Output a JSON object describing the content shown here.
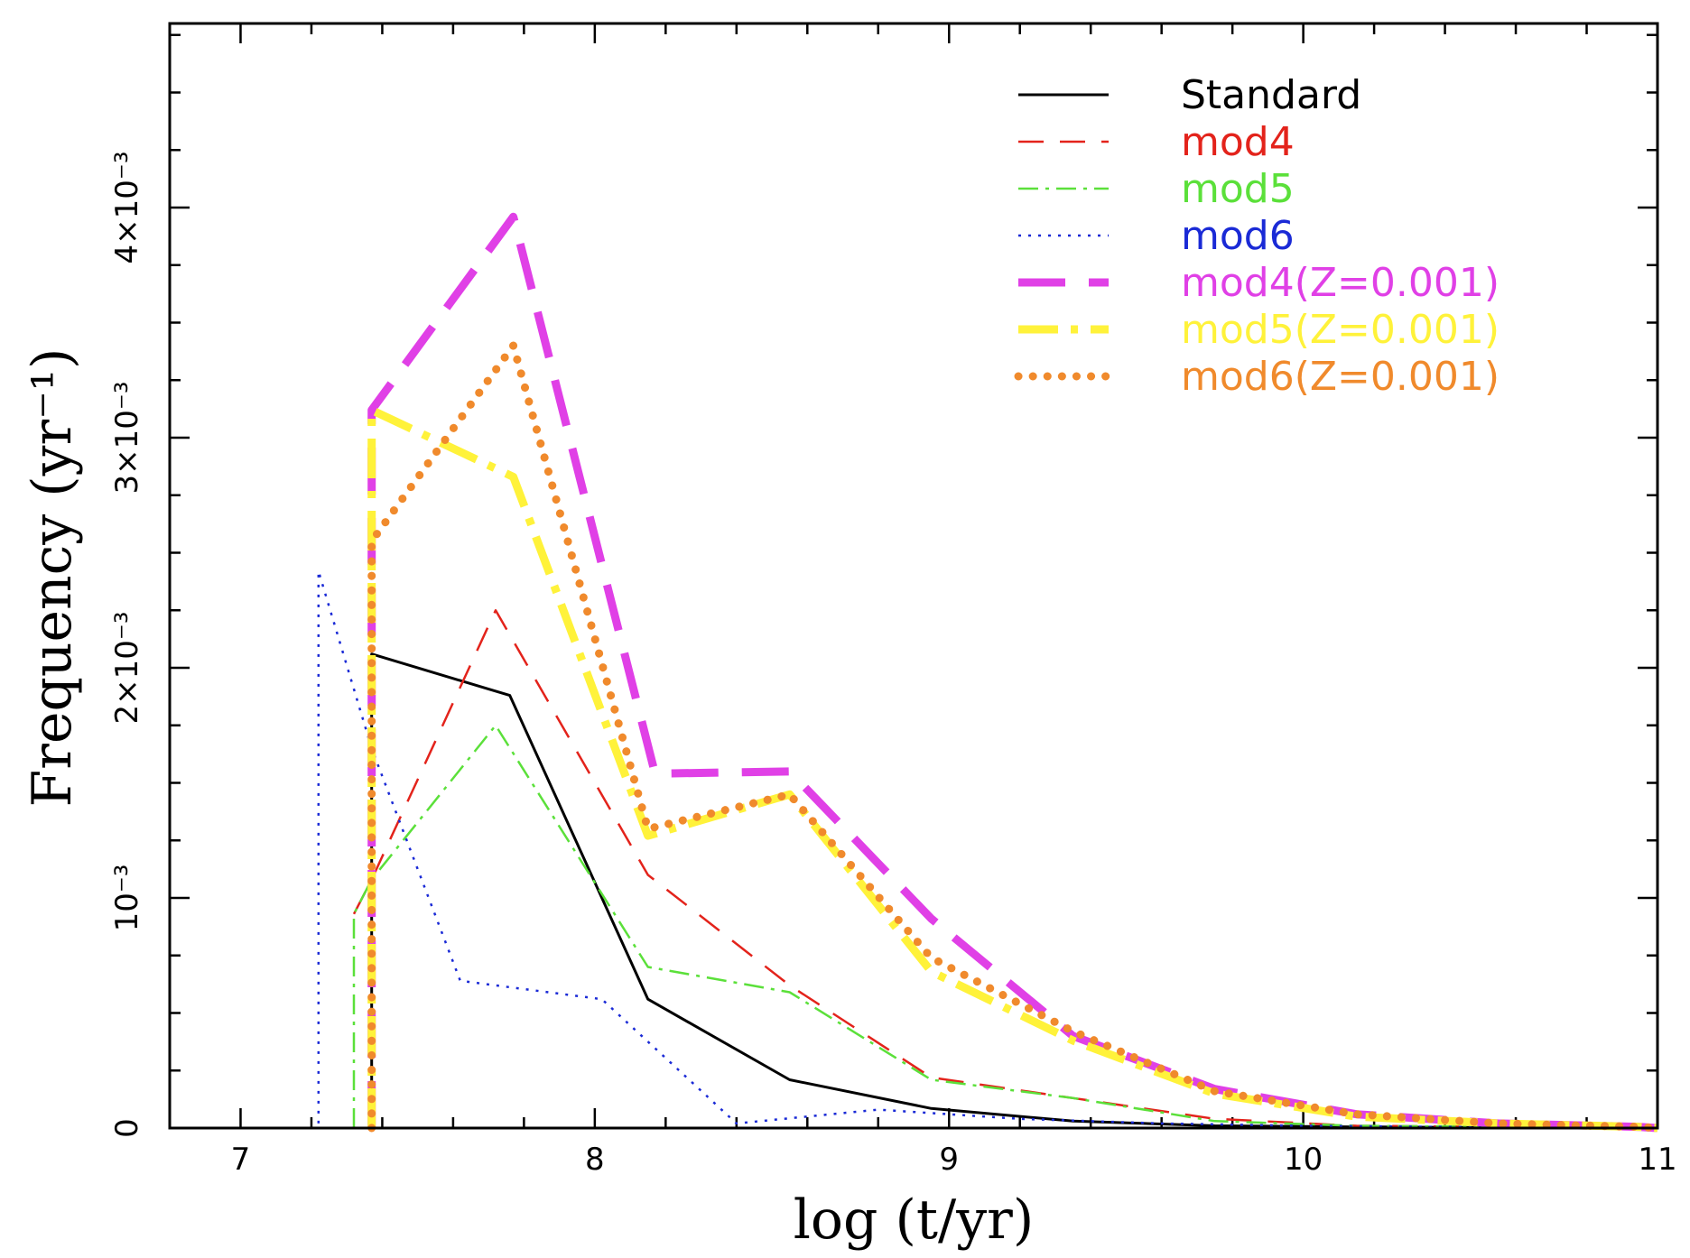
{
  "chart_data": {
    "type": "line",
    "xlabel": "log (t/yr)",
    "ylabel": "Frequency (yr⁻¹)",
    "xlim": [
      6.8,
      11
    ],
    "ylim": [
      0,
      0.0048
    ],
    "x_ticks": [
      {
        "value": 7,
        "label": "7"
      },
      {
        "value": 8,
        "label": "8"
      },
      {
        "value": 9,
        "label": "9"
      },
      {
        "value": 10,
        "label": "10"
      },
      {
        "value": 11,
        "label": "11"
      }
    ],
    "y_ticks": [
      {
        "value": 0,
        "label": "0"
      },
      {
        "value": 0.001,
        "label": "10⁻³"
      },
      {
        "value": 0.002,
        "label": "2×10⁻³"
      },
      {
        "value": 0.003,
        "label": "3×10⁻³"
      },
      {
        "value": 0.004,
        "label": "4×10⁻³"
      }
    ],
    "legend_position": "top-right",
    "series": [
      {
        "name": "Standard",
        "color": "#000000",
        "style": "solid",
        "width": 3,
        "x": [
          7.37,
          7.37,
          7.76,
          8.15,
          8.55,
          8.95,
          9.35,
          9.75,
          10.15,
          10.55,
          10.95,
          11.0
        ],
        "y": [
          0,
          0.00206,
          0.00188,
          0.00056,
          0.00021,
          8.5e-05,
          3e-05,
          1e-05,
          5e-06,
          2e-06,
          5e-07,
          0
        ]
      },
      {
        "name": "mod4",
        "color": "#e3231b",
        "style": "dash",
        "width": 2.5,
        "x": [
          7.32,
          7.37,
          7.72,
          8.15,
          8.55,
          8.95,
          9.35,
          9.75,
          10.15,
          10.55,
          10.95,
          11.0
        ],
        "y": [
          0.00093,
          0.00108,
          0.00225,
          0.0011,
          0.00062,
          0.00022,
          0.00013,
          4e-05,
          1e-05,
          5e-06,
          1e-06,
          0
        ]
      },
      {
        "name": "mod5",
        "color": "#5be03a",
        "style": "dashdot",
        "width": 2.5,
        "x": [
          7.32,
          7.32,
          7.37,
          7.72,
          8.15,
          8.55,
          8.95,
          9.35,
          9.75,
          10.15,
          10.55,
          10.95,
          11.0
        ],
        "y": [
          0,
          0.00093,
          0.00108,
          0.00175,
          0.0007,
          0.00059,
          0.00021,
          0.00013,
          3e-05,
          1e-05,
          5e-06,
          1e-06,
          0
        ]
      },
      {
        "name": "mod6",
        "color": "#1a2ad6",
        "style": "dot",
        "width": 2.5,
        "x": [
          7.22,
          7.22,
          7.37,
          7.62,
          8.02,
          8.4,
          8.8,
          9.2,
          9.6,
          10.0,
          10.4,
          11.0
        ],
        "y": [
          2e-05,
          0.00242,
          0.00165,
          0.00064,
          0.00056,
          2e-05,
          8e-05,
          4e-05,
          2e-05,
          1e-05,
          5e-06,
          0
        ]
      },
      {
        "name": "mod4(Z=0.001)",
        "color": "#e040e6",
        "style": "longdash",
        "width": 9,
        "x": [
          7.37,
          7.37,
          7.77,
          8.17,
          8.55,
          8.95,
          9.35,
          9.75,
          10.15,
          10.55,
          10.95,
          11.0
        ],
        "y": [
          0,
          0.00312,
          0.00396,
          0.00154,
          0.00155,
          0.00091,
          0.0004,
          0.00017,
          6e-05,
          2e-05,
          5e-06,
          0
        ]
      },
      {
        "name": "mod5(Z=0.001)",
        "color": "#fff23a",
        "style": "dashdot",
        "width": 9,
        "x": [
          7.37,
          7.37,
          7.77,
          8.15,
          8.55,
          8.95,
          9.35,
          9.75,
          10.15,
          10.55,
          10.95,
          11.0
        ],
        "y": [
          0,
          0.00312,
          0.00283,
          0.00127,
          0.00145,
          0.00068,
          0.00038,
          0.00015,
          5e-05,
          2e-05,
          5e-06,
          0
        ]
      },
      {
        "name": "mod6(Z=0.001)",
        "color": "#f08a2c",
        "style": "dot",
        "width": 9,
        "x": [
          7.37,
          7.37,
          7.77,
          8.15,
          8.55,
          8.95,
          9.35,
          9.75,
          10.15,
          10.55,
          10.95,
          11.0
        ],
        "y": [
          0,
          0.00255,
          0.0034,
          0.0013,
          0.00145,
          0.00074,
          0.00042,
          0.00016,
          6e-05,
          2e-05,
          5e-06,
          0
        ]
      }
    ]
  }
}
